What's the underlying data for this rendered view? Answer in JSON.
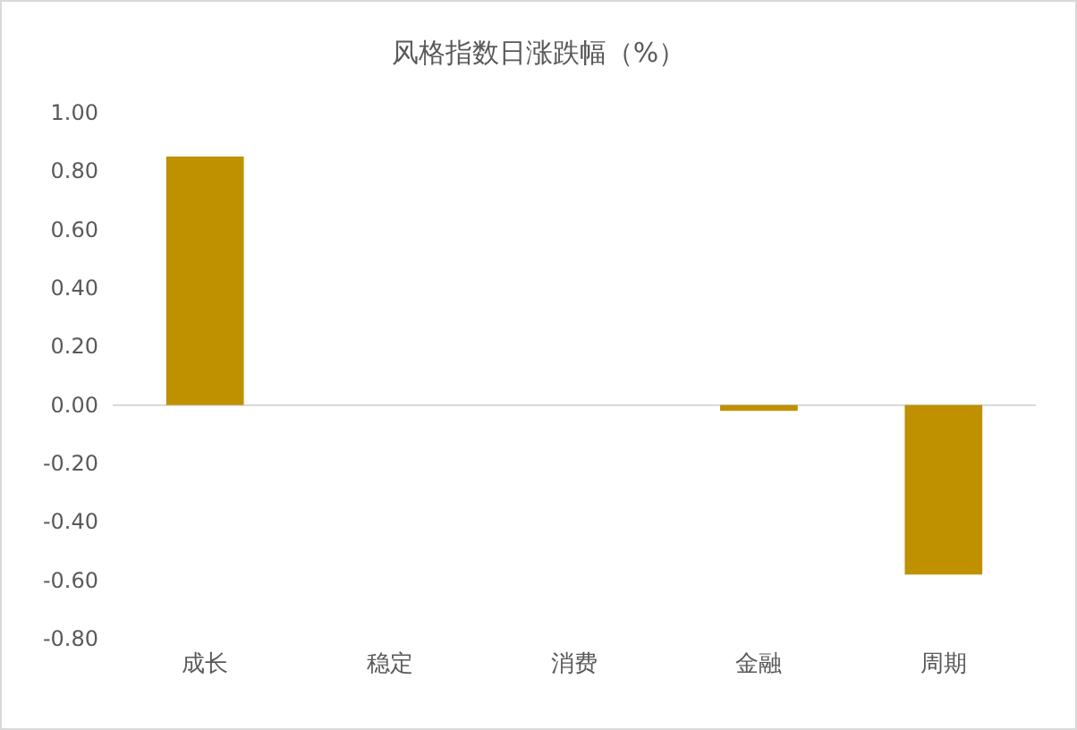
{
  "chart_data": {
    "type": "bar",
    "title": "风格指数日涨跌幅（%）",
    "categories": [
      "成长",
      "稳定",
      "消费",
      "金融",
      "周期"
    ],
    "values": [
      0.85,
      0,
      0,
      -0.02,
      -0.58
    ],
    "color": "#bf9000",
    "ylim": [
      -0.8,
      1.0
    ],
    "yticks": [
      {
        "value": -0.8,
        "label": "-0.80"
      },
      {
        "value": -0.6,
        "label": "-0.60"
      },
      {
        "value": -0.4,
        "label": "-0.40"
      },
      {
        "value": -0.2,
        "label": "-0.20"
      },
      {
        "value": 0,
        "label": "0.00"
      },
      {
        "value": 0.2,
        "label": "0.20"
      },
      {
        "value": 0.4,
        "label": "0.40"
      },
      {
        "value": 0.6,
        "label": "0.60"
      },
      {
        "value": 0.8,
        "label": "0.80"
      },
      {
        "value": 1.0,
        "label": "1.00"
      }
    ],
    "grid": false,
    "ref_lines": [
      {
        "axis": "y",
        "value": 0,
        "color": "#d9d9d9"
      }
    ]
  }
}
